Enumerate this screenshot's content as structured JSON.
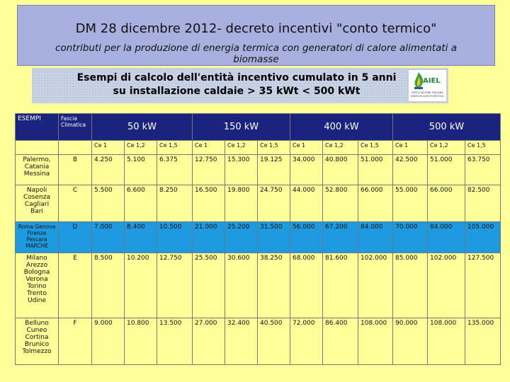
{
  "header": {
    "title": "DM 28 dicembre 2012- decreto incentivi \"conto termico\"",
    "subtitle": "contributi per la produzione di energia termica con generatori di calore alimentati a biomasse"
  },
  "banner": {
    "line1": "Esempi di calcolo dell'entità incentivo cumulato in 5 anni",
    "line2": "su installazione caldaie > 35 kWt < 500 kWt",
    "logo_text": "AIEL",
    "logo_sub": "ASSOCIAZIONE ITALIANA ENERGIE AGROFORESTALI"
  },
  "table": {
    "col_esempi": "ESEMPI",
    "col_fascia": "Fascia Climatica",
    "powers": [
      "50 kW",
      "150 kW",
      "400 kW",
      "500 kW"
    ],
    "ce_labels": [
      "Ce 1",
      "Ce 1,2",
      "Ce 1,5"
    ],
    "rows": [
      {
        "cities": "Palermo, Catania Messina",
        "zone": "B",
        "values": [
          "4.250",
          "5.100",
          "6.375",
          "12.750",
          "15.300",
          "19.125",
          "34.000",
          "40.800",
          "51.000",
          "42.500",
          "51.000",
          "63.750"
        ]
      },
      {
        "cities": "Napoli Cosenza Cagliari Bari",
        "zone": "C",
        "values": [
          "5.500",
          "6.600",
          "8.250",
          "16.500",
          "19.800",
          "24.750",
          "44.000",
          "52.800",
          "66.000",
          "55.000",
          "66.000",
          "82.500"
        ]
      },
      {
        "cities": "Roma Genova Firenze Pescara MARCHE",
        "zone": "D",
        "values": [
          "7.000",
          "8.400",
          "10.500",
          "21.000",
          "25.200",
          "31.500",
          "56.000",
          "67.200",
          "84.000",
          "70.000",
          "84.000",
          "105.000"
        ]
      },
      {
        "cities": "Milano Arezzo Bologna Verona Torino Trento Udine",
        "zone": "E",
        "values": [
          "8.500",
          "10.200",
          "12.750",
          "25.500",
          "30.600",
          "38.250",
          "68.000",
          "81.600",
          "102.000",
          "85.000",
          "102.000",
          "127.500"
        ]
      },
      {
        "cities": "Belluno Cuneo Cortina Brunico Tolmezzo",
        "zone": "F",
        "values": [
          "9.000",
          "10.800",
          "13.500",
          "27.000",
          "32.400",
          "40.500",
          "72.000",
          "86.400",
          "108.000",
          "90.000",
          "108.000",
          "135.000"
        ]
      }
    ]
  }
}
